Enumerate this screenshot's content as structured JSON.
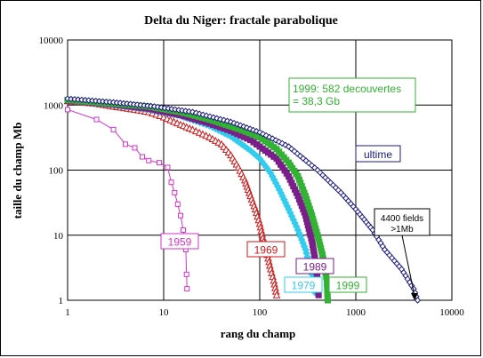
{
  "chart_data": {
    "type": "scatter",
    "title": "Delta du Niger: fractale parabolique",
    "xlabel": "rang du champ",
    "ylabel": "taille du champ Mb",
    "xscale": "log",
    "yscale": "log",
    "xlim": [
      1,
      10000
    ],
    "ylim": [
      1,
      10000
    ],
    "grid": true,
    "xticks": [
      "1",
      "10",
      "100",
      "1000",
      "10000"
    ],
    "yticks": [
      "1",
      "10",
      "100",
      "1000",
      "10000"
    ],
    "series": [
      {
        "name": "1959",
        "color": "#d633cc",
        "marker": "square",
        "points": [
          [
            1,
            850
          ],
          [
            2,
            600
          ],
          [
            3,
            420
          ],
          [
            4,
            250
          ],
          [
            5,
            220
          ],
          [
            6,
            160
          ],
          [
            7,
            140
          ],
          [
            9,
            130
          ],
          [
            11,
            110
          ],
          [
            12,
            65
          ],
          [
            13,
            45
          ],
          [
            14,
            30
          ],
          [
            15,
            20
          ],
          [
            16,
            12
          ],
          [
            17,
            6
          ],
          [
            17.3,
            2.5
          ],
          [
            17.5,
            1.5
          ]
        ]
      },
      {
        "name": "1969",
        "color": "#cc1a1a",
        "marker": "triangle",
        "points": [
          [
            1,
            1150
          ],
          [
            2,
            1050
          ],
          [
            3,
            950
          ],
          [
            5,
            850
          ],
          [
            7,
            780
          ],
          [
            10,
            650
          ],
          [
            15,
            500
          ],
          [
            20,
            420
          ],
          [
            30,
            320
          ],
          [
            40,
            250
          ],
          [
            50,
            170
          ],
          [
            60,
            110
          ],
          [
            70,
            70
          ],
          [
            80,
            40
          ],
          [
            90,
            25
          ],
          [
            100,
            15
          ],
          [
            110,
            8
          ],
          [
            120,
            5
          ],
          [
            130,
            3
          ],
          [
            140,
            2
          ],
          [
            150,
            1.2
          ]
        ]
      },
      {
        "name": "1979",
        "color": "#33ccee",
        "marker": "diamond",
        "points": [
          [
            1,
            1180
          ],
          [
            3,
            1000
          ],
          [
            7,
            850
          ],
          [
            15,
            680
          ],
          [
            30,
            480
          ],
          [
            50,
            330
          ],
          [
            80,
            200
          ],
          [
            100,
            150
          ],
          [
            130,
            90
          ],
          [
            160,
            50
          ],
          [
            200,
            25
          ],
          [
            250,
            12
          ],
          [
            300,
            6
          ],
          [
            350,
            2.5
          ],
          [
            380,
            1.3
          ]
        ]
      },
      {
        "name": "1989",
        "color": "#7a1f8a",
        "marker": "square",
        "points": [
          [
            1,
            1180
          ],
          [
            3,
            1020
          ],
          [
            7,
            880
          ],
          [
            15,
            700
          ],
          [
            30,
            520
          ],
          [
            50,
            400
          ],
          [
            80,
            290
          ],
          [
            100,
            230
          ],
          [
            150,
            150
          ],
          [
            200,
            80
          ],
          [
            250,
            40
          ],
          [
            300,
            20
          ],
          [
            350,
            8
          ],
          [
            380,
            4
          ],
          [
            400,
            2
          ],
          [
            410,
            1.2
          ]
        ]
      },
      {
        "name": "1999",
        "color": "#33b233",
        "marker": "square",
        "points": [
          [
            1,
            1200
          ],
          [
            3,
            1050
          ],
          [
            7,
            950
          ],
          [
            15,
            780
          ],
          [
            30,
            600
          ],
          [
            60,
            430
          ],
          [
            100,
            320
          ],
          [
            150,
            210
          ],
          [
            200,
            130
          ],
          [
            250,
            80
          ],
          [
            300,
            40
          ],
          [
            350,
            20
          ],
          [
            400,
            10
          ],
          [
            450,
            5
          ],
          [
            500,
            2
          ],
          [
            510,
            1
          ]
        ]
      },
      {
        "name": "ultime",
        "color": "#1a1a80",
        "marker": "diamond-open",
        "points": [
          [
            1,
            1250
          ],
          [
            3,
            1100
          ],
          [
            8,
            950
          ],
          [
            20,
            780
          ],
          [
            50,
            550
          ],
          [
            100,
            380
          ],
          [
            200,
            230
          ],
          [
            400,
            100
          ],
          [
            700,
            45
          ],
          [
            1000,
            25
          ],
          [
            1500,
            12
          ],
          [
            2000,
            6
          ],
          [
            3000,
            3
          ],
          [
            4000,
            1.5
          ],
          [
            4400,
            1
          ]
        ]
      }
    ],
    "annotations": [
      {
        "text_lines": [
          "1999: 582 decouvertes",
          "= 38,3 Gb"
        ],
        "color": "#33b233"
      },
      {
        "text_lines": [
          "ultime"
        ],
        "color": "#1a1a80"
      },
      {
        "text_lines": [
          "4400 fields",
          ">1Mb"
        ],
        "color": "#000000"
      },
      {
        "text_lines": [
          "1959"
        ],
        "color": "#d633cc"
      },
      {
        "text_lines": [
          "1969"
        ],
        "color": "#cc1a1a"
      },
      {
        "text_lines": [
          "1989"
        ],
        "color": "#7a1f8a"
      },
      {
        "text_lines": [
          "1979"
        ],
        "color": "#33ccee"
      },
      {
        "text_lines": [
          "1999"
        ],
        "color": "#33b233"
      }
    ]
  }
}
